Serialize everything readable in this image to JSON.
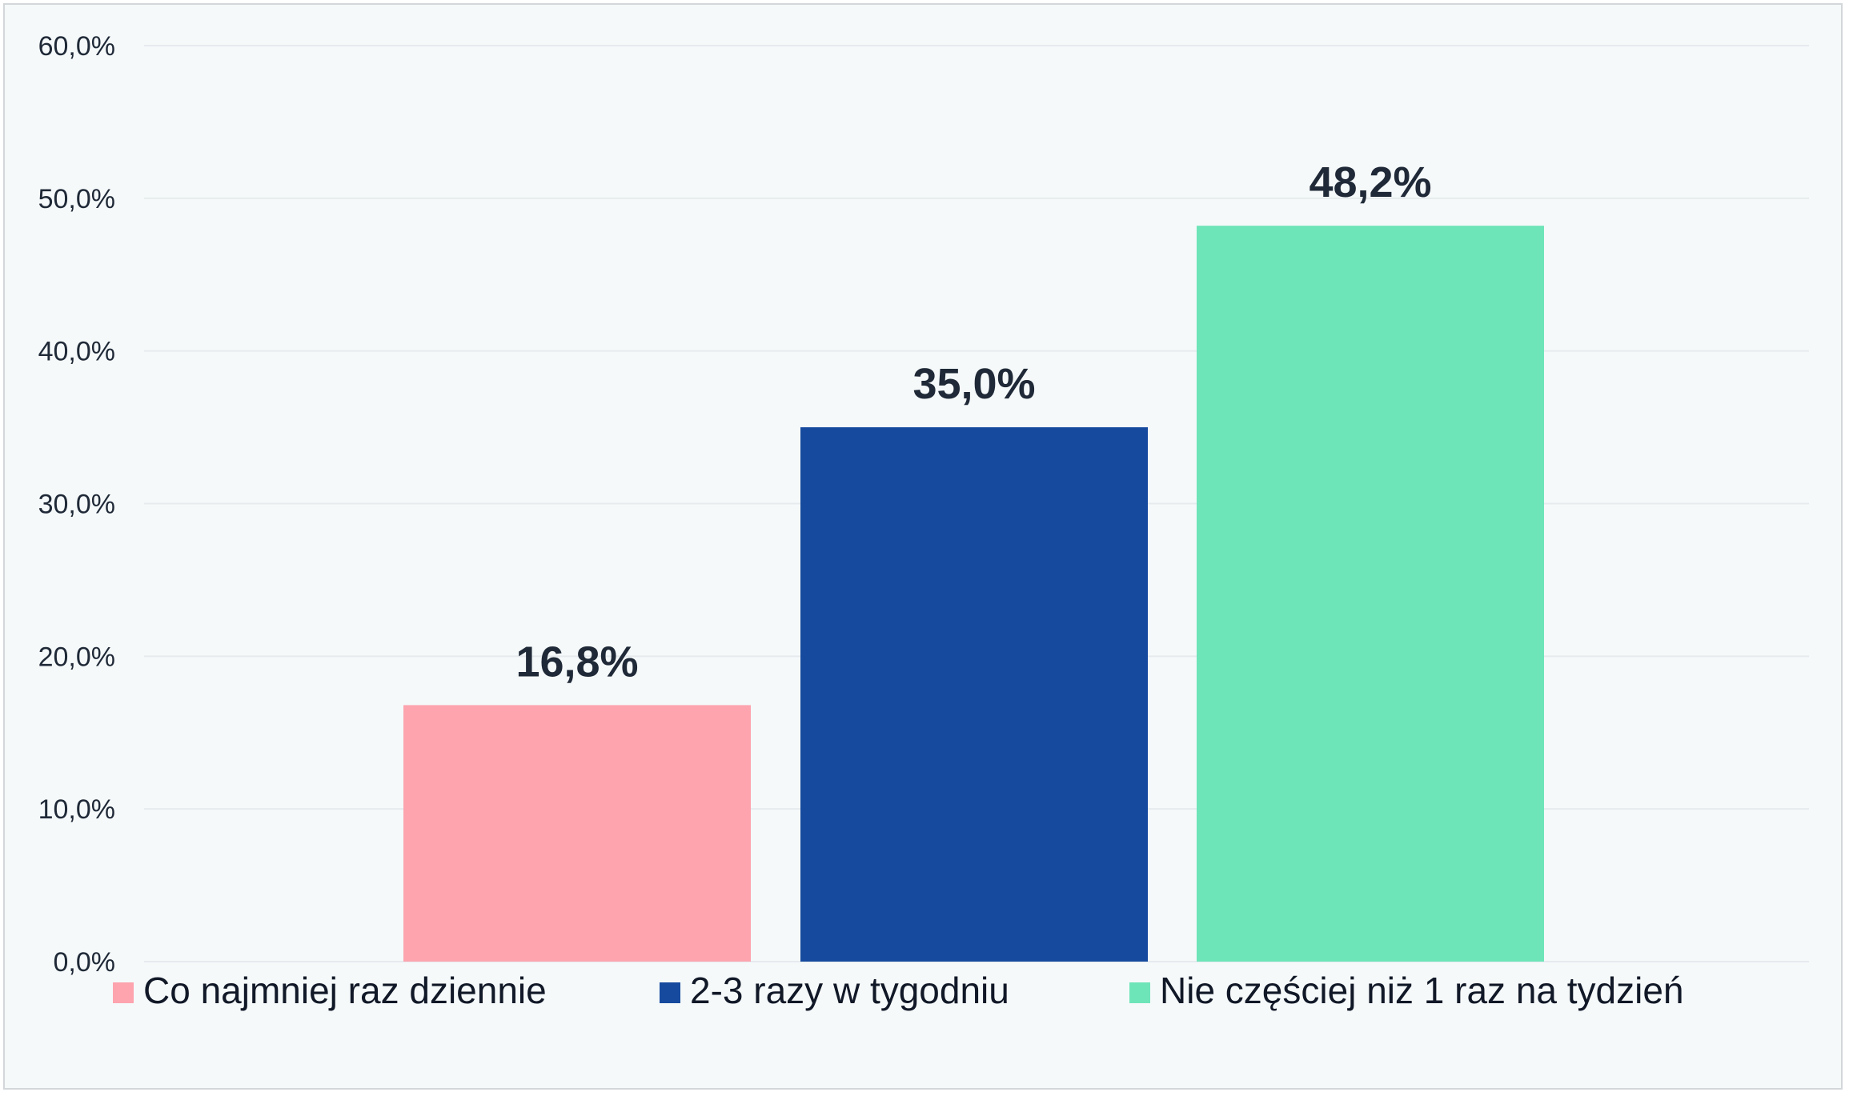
{
  "chart_data": {
    "type": "bar",
    "title": "",
    "xlabel": "",
    "ylabel": "",
    "ylim": [
      0,
      60
    ],
    "y_ticks": [
      "0,0%",
      "10,0%",
      "20,0%",
      "30,0%",
      "40,0%",
      "50,0%",
      "60,0%"
    ],
    "grid": true,
    "legend_position": "bottom",
    "series": [
      {
        "name": "Co najmniej raz dziennie",
        "value": 16.8,
        "label": "16,8%",
        "color": "#fda4af"
      },
      {
        "name": "2-3 razy w tygodniu",
        "value": 35.0,
        "label": "35,0%",
        "color": "#164a9e"
      },
      {
        "name": "Nie częściej niż 1 raz na tydzień",
        "value": 48.2,
        "label": "48,2%",
        "color": "#6ee5b9"
      }
    ]
  }
}
